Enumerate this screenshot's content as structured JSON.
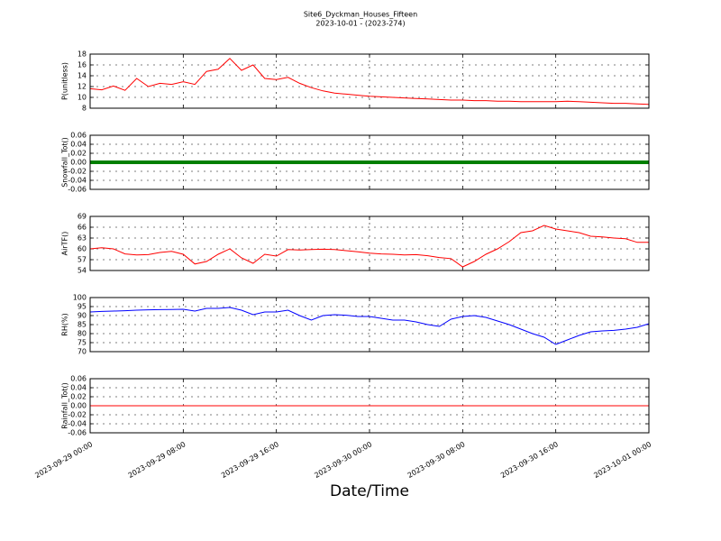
{
  "chart_data": {
    "type": "line",
    "title": "Site6_Dyckman_Houses_Fifteen",
    "subtitle": "2023-10-01 - (2023-274)",
    "xlabel": "Date/Time",
    "grid": true,
    "xlim": [
      "2023-09-29 00:00",
      "2023-10-01 00:00"
    ],
    "xticks": [
      "2023-09-29 00:00",
      "2023-09-29 08:00",
      "2023-09-29 16:00",
      "2023-09-30 00:00",
      "2023-09-30 08:00",
      "2023-09-30 16:00",
      "2023-10-01 00:00"
    ],
    "x": [
      "2023-09-29 00:00",
      "2023-09-29 01:00",
      "2023-09-29 02:00",
      "2023-09-29 03:00",
      "2023-09-29 04:00",
      "2023-09-29 05:00",
      "2023-09-29 06:00",
      "2023-09-29 07:00",
      "2023-09-29 08:00",
      "2023-09-29 09:00",
      "2023-09-29 10:00",
      "2023-09-29 11:00",
      "2023-09-29 12:00",
      "2023-09-29 13:00",
      "2023-09-29 14:00",
      "2023-09-29 15:00",
      "2023-09-29 16:00",
      "2023-09-29 17:00",
      "2023-09-29 18:00",
      "2023-09-29 19:00",
      "2023-09-29 20:00",
      "2023-09-29 21:00",
      "2023-09-29 22:00",
      "2023-09-29 23:00",
      "2023-09-30 00:00",
      "2023-09-30 01:00",
      "2023-09-30 02:00",
      "2023-09-30 03:00",
      "2023-09-30 04:00",
      "2023-09-30 05:00",
      "2023-09-30 06:00",
      "2023-09-30 07:00",
      "2023-09-30 08:00",
      "2023-09-30 09:00",
      "2023-09-30 10:00",
      "2023-09-30 11:00",
      "2023-09-30 12:00",
      "2023-09-30 13:00",
      "2023-09-30 14:00",
      "2023-09-30 15:00",
      "2023-09-30 16:00",
      "2023-09-30 17:00",
      "2023-09-30 18:00",
      "2023-09-30 19:00",
      "2023-09-30 20:00",
      "2023-09-30 21:00",
      "2023-09-30 22:00",
      "2023-09-30 23:00",
      "2023-10-01 00:00"
    ],
    "panels": [
      {
        "ylabel": "P(unitless)",
        "ylim": [
          8,
          18
        ],
        "yticks": [
          8,
          10,
          12,
          14,
          16,
          18
        ],
        "series": [
          {
            "color": "#ff0000",
            "values": [
              11.6,
              11.4,
              12.1,
              11.3,
              13.5,
              12.0,
              12.6,
              12.4,
              12.9,
              12.4,
              14.8,
              15.2,
              17.2,
              15.0,
              16.0,
              13.5,
              13.3,
              13.7,
              12.6,
              11.8,
              11.2,
              10.8,
              10.6,
              10.4,
              10.2,
              10.1,
              10.0,
              9.9,
              9.8,
              9.7,
              9.6,
              9.5,
              9.5,
              9.4,
              9.4,
              9.3,
              9.3,
              9.2,
              9.2,
              9.2,
              9.2,
              9.3,
              9.2,
              9.1,
              9.0,
              8.9,
              8.9,
              8.8,
              8.7
            ]
          }
        ]
      },
      {
        "ylabel": "Snowfall_Tot()",
        "ylim": [
          -0.06,
          0.06
        ],
        "yticks": [
          -0.06,
          -0.04,
          -0.02,
          {
            "value": 0,
            "label": "0.00"
          },
          0.02,
          0.04,
          0.06
        ],
        "series": [
          {
            "color": "#008000",
            "width": 4,
            "values": [
              0,
              0,
              0,
              0,
              0,
              0,
              0,
              0,
              0,
              0,
              0,
              0,
              0,
              0,
              0,
              0,
              0,
              0,
              0,
              0,
              0,
              0,
              0,
              0,
              0,
              0,
              0,
              0,
              0,
              0,
              0,
              0,
              0,
              0,
              0,
              0,
              0,
              0,
              0,
              0,
              0,
              0,
              0,
              0,
              0,
              0,
              0,
              0,
              0
            ]
          }
        ]
      },
      {
        "ylabel": "AirTF()",
        "ylim": [
          54,
          69
        ],
        "yticks": [
          54,
          57,
          60,
          63,
          66,
          69
        ],
        "series": [
          {
            "color": "#ff0000",
            "values": [
              60,
              60.3,
              60,
              58.6,
              58.3,
              58.4,
              59,
              59.3,
              58.5,
              55.8,
              56.5,
              58.5,
              60,
              57.5,
              56,
              58.5,
              58,
              59.8,
              59.7,
              59.8,
              59.9,
              59.8,
              59.5,
              59.2,
              58.8,
              58.6,
              58.5,
              58.3,
              58.4,
              58.1,
              57.6,
              57.3,
              55,
              56.5,
              58.5,
              60,
              62,
              64.5,
              65,
              66.5,
              65.5,
              65,
              64.5,
              63.5,
              63.3,
              63,
              62.8,
              61.8,
              61.8
            ]
          }
        ]
      },
      {
        "ylabel": "RH(%)",
        "ylim": [
          70,
          100
        ],
        "yticks": [
          70,
          75,
          80,
          85,
          90,
          95,
          100
        ],
        "series": [
          {
            "color": "#0000ff",
            "values": [
              92,
              92.3,
              92.5,
              92.7,
              93,
              93.2,
              93.3,
              93.4,
              93.5,
              92.5,
              94,
              94,
              94.5,
              93,
              90.5,
              92,
              92,
              93,
              90,
              87.5,
              90,
              90.5,
              90.2,
              89.5,
              89.5,
              88.5,
              87.5,
              87.5,
              86.5,
              85,
              84,
              88,
              89.5,
              90,
              89,
              87,
              85,
              82.5,
              80,
              78,
              74,
              76.5,
              79,
              81,
              81.5,
              81.8,
              82.5,
              83.5,
              85.5
            ]
          }
        ]
      },
      {
        "ylabel": "Rainfall_Tot()",
        "ylim": [
          -0.06,
          0.06
        ],
        "yticks": [
          -0.06,
          -0.04,
          -0.02,
          {
            "value": 0,
            "label": "0.00"
          },
          0.02,
          0.04,
          0.06
        ],
        "series": [
          {
            "color": "#ff0000",
            "values": [
              0,
              0,
              0,
              0,
              0,
              0,
              0,
              0,
              0,
              0,
              0,
              0,
              0,
              0,
              0,
              0,
              0,
              0,
              0,
              0,
              0,
              0,
              0,
              0,
              0,
              0,
              0,
              0,
              0,
              0,
              0,
              0,
              0,
              0,
              0,
              0,
              0,
              0,
              0,
              0,
              0,
              0,
              0,
              0,
              0,
              0,
              0,
              0,
              0
            ]
          }
        ]
      }
    ]
  }
}
